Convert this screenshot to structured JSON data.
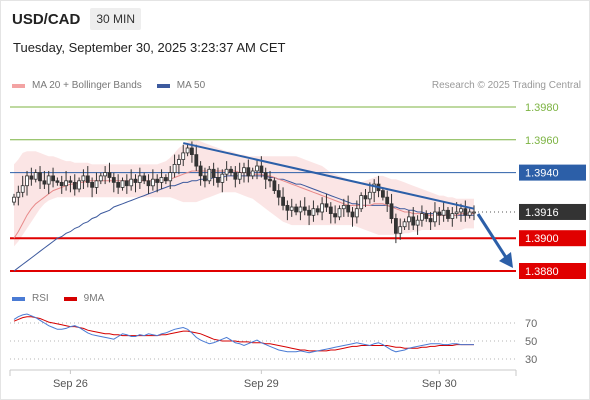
{
  "header": {
    "symbol": "USD/CAD",
    "timeframe": "30 MIN",
    "datetime": "Tuesday, September 30, 2025 3:23:37 AM CET"
  },
  "legend": {
    "ma20_label": "MA 20 + Bollinger Bands",
    "ma50_label": "MA 50",
    "rsi_label": "RSI",
    "rsi_ma_label": "9MA",
    "credit": "Research © 2025 Trading Central"
  },
  "colors": {
    "candle": "#333333",
    "ma20": "#e88a8a",
    "bollinger_fill": "#f7d0d0",
    "ma50": "#3d5a9e",
    "resistance": "#7cb342",
    "support": "#e00000",
    "pivot": "#2c5fa8",
    "last_price_badge": "#333333",
    "forecast_arrow": "#2c5fa8",
    "rsi": "#4a7bd4",
    "rsi_ma": "#d50000"
  },
  "chart_data": [
    {
      "type": "candlestick",
      "title": "USD/CAD",
      "ylim": [
        1.3875,
        1.3985
      ],
      "x_tick_labels": [
        "Sep 26",
        "Sep 29",
        "Sep 30"
      ],
      "levels": [
        {
          "value": 1.398,
          "label": "1.3980",
          "role": "resistance"
        },
        {
          "value": 1.396,
          "label": "1.3960",
          "role": "resistance"
        },
        {
          "value": 1.394,
          "label": "1.3940",
          "role": "pivot"
        },
        {
          "value": 1.39,
          "label": "1.3900",
          "role": "support"
        },
        {
          "value": 1.388,
          "label": "1.3880",
          "role": "support"
        }
      ],
      "last_price": {
        "value": 1.3916,
        "label": "1.3916"
      },
      "trendline": {
        "start": 1.3958,
        "end": 1.3918
      },
      "forecast_target": 1.388,
      "close": [
        1.3925,
        1.3928,
        1.3932,
        1.3938,
        1.3936,
        1.394,
        1.3935,
        1.3933,
        1.3938,
        1.3935,
        1.3934,
        1.3932,
        1.3935,
        1.3934,
        1.393,
        1.3935,
        1.3938,
        1.3934,
        1.3931,
        1.3935,
        1.3938,
        1.394,
        1.3937,
        1.3934,
        1.3931,
        1.3935,
        1.3932,
        1.3936,
        1.3934,
        1.3938,
        1.3935,
        1.3932,
        1.3936,
        1.3934,
        1.3937,
        1.3935,
        1.394,
        1.3945,
        1.3948,
        1.3952,
        1.3955,
        1.3951,
        1.3944,
        1.3938,
        1.3935,
        1.3942,
        1.3937,
        1.3934,
        1.3939,
        1.3942,
        1.394,
        1.3936,
        1.394,
        1.3943,
        1.3938,
        1.3941,
        1.3944,
        1.394,
        1.3936,
        1.3935,
        1.3929,
        1.3925,
        1.392,
        1.3917,
        1.3919,
        1.3916,
        1.3919,
        1.3917,
        1.3914,
        1.3918,
        1.3916,
        1.3921,
        1.3919,
        1.3915,
        1.3913,
        1.3918,
        1.392,
        1.3916,
        1.3913,
        1.3918,
        1.3926,
        1.3924,
        1.3928,
        1.3933,
        1.3929,
        1.3925,
        1.3921,
        1.3912,
        1.3903,
        1.3907,
        1.391,
        1.3913,
        1.3908,
        1.3911,
        1.3915,
        1.3912,
        1.391,
        1.3916,
        1.3914,
        1.3917,
        1.3912,
        1.3915,
        1.3916,
        1.3918,
        1.3914,
        1.3916,
        1.3916
      ],
      "ma20": [
        1.39,
        1.3904,
        1.3909,
        1.3914,
        1.3918,
        1.3921,
        1.3923,
        1.3925,
        1.3927,
        1.3929,
        1.393,
        1.3931,
        1.3932,
        1.3933,
        1.3933,
        1.3934,
        1.3934,
        1.3935,
        1.3935,
        1.3935,
        1.3935,
        1.3935,
        1.3935,
        1.3935,
        1.3935,
        1.3935,
        1.3935,
        1.3935,
        1.3935,
        1.3935,
        1.3935,
        1.3935,
        1.3935,
        1.3935,
        1.3935,
        1.3936,
        1.3936,
        1.3937,
        1.3938,
        1.3939,
        1.394,
        1.3941,
        1.3941,
        1.3941,
        1.3941,
        1.3941,
        1.3941,
        1.3941,
        1.3941,
        1.3941,
        1.3941,
        1.3941,
        1.394,
        1.394,
        1.394,
        1.3939,
        1.3939,
        1.3939,
        1.3938,
        1.3938,
        1.3937,
        1.3936,
        1.3935,
        1.3934,
        1.3933,
        1.3932,
        1.3931,
        1.393,
        1.3929,
        1.3928,
        1.3927,
        1.3926,
        1.3925,
        1.3924,
        1.3923,
        1.3922,
        1.3921,
        1.392,
        1.392,
        1.392,
        1.392,
        1.392,
        1.392,
        1.3921,
        1.3921,
        1.3921,
        1.392,
        1.3919,
        1.3918,
        1.3917,
        1.3916,
        1.3916,
        1.3915,
        1.3915,
        1.3915,
        1.3914,
        1.3914,
        1.3914,
        1.3914,
        1.3914,
        1.3914,
        1.3914,
        1.3914,
        1.3915,
        1.3915,
        1.3915,
        1.3915
      ],
      "ma50": [
        1.388,
        1.3882,
        1.3884,
        1.3886,
        1.3888,
        1.389,
        1.3892,
        1.3894,
        1.3896,
        1.3898,
        1.39,
        1.3901,
        1.3903,
        1.3904,
        1.3906,
        1.3907,
        1.3909,
        1.391,
        1.3912,
        1.3913,
        1.3915,
        1.3916,
        1.3917,
        1.3919,
        1.392,
        1.3921,
        1.3922,
        1.3923,
        1.3924,
        1.3925,
        1.3926,
        1.3927,
        1.3928,
        1.3929,
        1.393,
        1.3931,
        1.3932,
        1.3932,
        1.3933,
        1.3934,
        1.3934,
        1.3935,
        1.3935,
        1.3936,
        1.3936,
        1.3936,
        1.3937,
        1.3937,
        1.3937,
        1.3938,
        1.3938,
        1.3938,
        1.3938,
        1.3938,
        1.3938,
        1.3938,
        1.3938,
        1.3938,
        1.3938,
        1.3937,
        1.3937,
        1.3936,
        1.3936,
        1.3935,
        1.3934,
        1.3933,
        1.3933,
        1.3932,
        1.3931,
        1.393,
        1.3929,
        1.3928,
        1.3927,
        1.3926,
        1.3925,
        1.3924,
        1.3923,
        1.3922,
        1.3921,
        1.3921,
        1.392,
        1.392,
        1.392,
        1.392,
        1.392,
        1.392,
        1.392,
        1.3919,
        1.3919,
        1.3918,
        1.3918,
        1.3917,
        1.3917,
        1.3916,
        1.3916,
        1.3915,
        1.3915,
        1.3915,
        1.3915,
        1.3914,
        1.3914,
        1.3914,
        1.3914,
        1.3914,
        1.3914,
        1.3914,
        1.3914
      ],
      "bb_upper": [
        1.3945,
        1.3948,
        1.3952,
        1.3953,
        1.3953,
        1.3953,
        1.3952,
        1.3951,
        1.395,
        1.395,
        1.3949,
        1.3948,
        1.3947,
        1.3947,
        1.3946,
        1.3946,
        1.3946,
        1.3946,
        1.3945,
        1.3945,
        1.3945,
        1.3945,
        1.3945,
        1.3945,
        1.3945,
        1.3945,
        1.3945,
        1.3945,
        1.3945,
        1.3945,
        1.3945,
        1.3945,
        1.3945,
        1.3945,
        1.3946,
        1.3947,
        1.3949,
        1.3952,
        1.3955,
        1.3957,
        1.3959,
        1.396,
        1.396,
        1.3959,
        1.3958,
        1.3957,
        1.3956,
        1.3955,
        1.3954,
        1.3953,
        1.3953,
        1.3952,
        1.3951,
        1.3951,
        1.395,
        1.395,
        1.395,
        1.395,
        1.395,
        1.395,
        1.395,
        1.395,
        1.395,
        1.395,
        1.395,
        1.395,
        1.3949,
        1.3948,
        1.3947,
        1.3946,
        1.3945,
        1.3944,
        1.3942,
        1.394,
        1.3939,
        1.3938,
        1.3937,
        1.3936,
        1.3935,
        1.3934,
        1.3934,
        1.3935,
        1.3936,
        1.3937,
        1.3938,
        1.3938,
        1.3937,
        1.3936,
        1.3936,
        1.3935,
        1.3934,
        1.3933,
        1.3932,
        1.3931,
        1.393,
        1.3929,
        1.3928,
        1.3927,
        1.3926,
        1.3926,
        1.3925,
        1.3925,
        1.3924,
        1.3924,
        1.3924,
        1.3924,
        1.3924
      ],
      "bb_lower": [
        1.3895,
        1.3898,
        1.3902,
        1.3906,
        1.391,
        1.3914,
        1.3918,
        1.3921,
        1.3923,
        1.3924,
        1.3925,
        1.3925,
        1.3925,
        1.3925,
        1.3925,
        1.3925,
        1.3925,
        1.3925,
        1.3925,
        1.3925,
        1.3925,
        1.3925,
        1.3925,
        1.3925,
        1.3925,
        1.3925,
        1.3925,
        1.3925,
        1.3925,
        1.3925,
        1.3925,
        1.3925,
        1.3925,
        1.3925,
        1.3925,
        1.3925,
        1.3925,
        1.3924,
        1.3923,
        1.3922,
        1.3922,
        1.3922,
        1.3922,
        1.3923,
        1.3924,
        1.3925,
        1.3926,
        1.3927,
        1.3928,
        1.3928,
        1.3928,
        1.3928,
        1.3927,
        1.3926,
        1.3925,
        1.3924,
        1.3922,
        1.392,
        1.3918,
        1.3916,
        1.3914,
        1.3912,
        1.391,
        1.3909,
        1.3908,
        1.3908,
        1.3908,
        1.3908,
        1.3908,
        1.3908,
        1.3908,
        1.3908,
        1.3908,
        1.3908,
        1.3908,
        1.3908,
        1.3908,
        1.3908,
        1.3908,
        1.3907,
        1.3906,
        1.3905,
        1.3904,
        1.3903,
        1.3902,
        1.3902,
        1.3902,
        1.3902,
        1.3902,
        1.3902,
        1.3903,
        1.3903,
        1.3904,
        1.3904,
        1.3905,
        1.3905,
        1.3905,
        1.3905,
        1.3905,
        1.3905,
        1.3905,
        1.3905,
        1.3905,
        1.3905,
        1.3906,
        1.3906,
        1.3906
      ]
    },
    {
      "type": "line",
      "title": "RSI",
      "ylim": [
        20,
        85
      ],
      "y_ticks": [
        70,
        50,
        30
      ],
      "series": [
        {
          "name": "RSI",
          "values": [
            74,
            77,
            79,
            80,
            78,
            76,
            73,
            70,
            67,
            65,
            63,
            63,
            64,
            66,
            67,
            65,
            62,
            59,
            57,
            56,
            55,
            54,
            53,
            52,
            55,
            58,
            57,
            55,
            55,
            57,
            56,
            58,
            57,
            56,
            58,
            59,
            61,
            63,
            64,
            65,
            63,
            59,
            54,
            51,
            49,
            47,
            48,
            50,
            52,
            54,
            51,
            48,
            47,
            45,
            47,
            49,
            51,
            48,
            46,
            44,
            42,
            40,
            39,
            38,
            38,
            38,
            39,
            38,
            37,
            38,
            39,
            40,
            41,
            42,
            43,
            44,
            45,
            46,
            47,
            48,
            47,
            46,
            45,
            47,
            48,
            46,
            43,
            40,
            38,
            39,
            40,
            42,
            43,
            44,
            45,
            46,
            47,
            47,
            47,
            46,
            46,
            47,
            47,
            46,
            46,
            46,
            46
          ]
        },
        {
          "name": "9MA",
          "values": [
            72,
            74,
            76,
            77,
            77,
            76,
            75,
            73,
            71,
            70,
            69,
            68,
            67,
            66,
            66,
            65,
            64,
            62,
            61,
            60,
            59,
            58,
            58,
            57,
            57,
            56,
            56,
            56,
            56,
            56,
            56,
            56,
            56,
            56,
            57,
            57,
            58,
            59,
            60,
            61,
            61,
            60,
            59,
            58,
            56,
            54,
            52,
            51,
            50,
            50,
            50,
            50,
            49,
            49,
            49,
            48,
            48,
            48,
            47,
            47,
            46,
            45,
            44,
            43,
            42,
            41,
            40,
            40,
            39,
            39,
            39,
            39,
            39,
            40,
            40,
            41,
            42,
            43,
            44,
            44,
            45,
            45,
            45,
            45,
            45,
            45,
            45,
            44,
            43,
            43,
            42,
            42,
            42,
            42,
            43,
            43,
            44,
            44,
            45,
            45,
            45,
            45,
            46,
            46,
            46,
            46,
            46
          ]
        }
      ]
    }
  ]
}
